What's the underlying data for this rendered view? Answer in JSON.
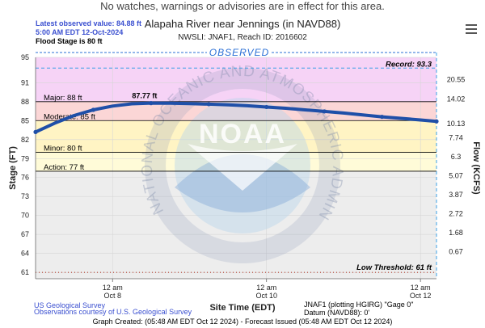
{
  "banner": {
    "advisory": "No watches, warnings or advisories are in effect for this area."
  },
  "header": {
    "latest_value": "Latest observed value: 84.88 ft",
    "latest_time": "5:00 AM EDT 12-Oct-2024",
    "flood_stage": "Flood Stage is 80 ft",
    "title": "Alapaha River near Jennings (in NAVD88)",
    "subtitle": "NWSLI: JNAF1, Reach ID: 2016602",
    "observed_label": "OBSERVED"
  },
  "watermark": {
    "text": "NOAA",
    "ring_text": "NATIONAL OCEANIC AND ATMOSPHERIC ADMINISTRATION · U.S. DEPARTMENT OF COMMERCE"
  },
  "footer": {
    "credit_usgs": "US Geological Survey",
    "credit_observations": "Observations courtesy of U.S. Geological Survey",
    "gage_line1": "JNAF1 (plotting HGIRG) \"Gage 0\"",
    "gage_line2": "Datum (NAVD88): 0'",
    "graph_created": "Graph Created: (05:48 AM EDT Oct 12 2024) - Forecast Issued (05:48 AM EDT Oct 12 2024)"
  },
  "colors": {
    "major": "#f6d3f6",
    "moderate": "#fbd6d6",
    "minor": "#fff4c4",
    "action": "#fffbd8",
    "normal": "#ededed",
    "line": "#1f4fa8",
    "accent": "#2a6fd6",
    "observed_divider": "#3aa0e6"
  },
  "chart_data": {
    "type": "line",
    "title": "Alapaha River near Jennings (in NAVD88)",
    "subtitle": "NWSLI: JNAF1, Reach ID: 2016602",
    "xlabel": "Site Time (EDT)",
    "ylabel": "Stage (FT)",
    "y2label": "Flow (KCFS)",
    "ylim": [
      60,
      95
    ],
    "xlim": [
      "2024-10-07 00:00",
      "2024-10-12 05:00"
    ],
    "y_ticks": [
      61,
      64,
      67,
      70,
      73,
      76,
      79,
      82,
      85,
      88,
      91,
      95
    ],
    "y2_ticks": [
      {
        "stage": 91.5,
        "label": "20.55"
      },
      {
        "stage": 88.4,
        "label": "14.02"
      },
      {
        "stage": 84.5,
        "label": "10.13"
      },
      {
        "stage": 82.3,
        "label": "7.74"
      },
      {
        "stage": 79.3,
        "label": "6.3"
      },
      {
        "stage": 76.3,
        "label": "5.07"
      },
      {
        "stage": 73.3,
        "label": "3.87"
      },
      {
        "stage": 70.3,
        "label": "2.72"
      },
      {
        "stage": 67.3,
        "label": "1.68"
      },
      {
        "stage": 64.3,
        "label": "0.67"
      }
    ],
    "x_ticks": [
      {
        "x": "2024-10-08 00:00",
        "line1": "12 am",
        "line2": "Oct 8"
      },
      {
        "x": "2024-10-10 00:00",
        "line1": "12 am",
        "line2": "Oct 10"
      },
      {
        "x": "2024-10-12 00:00",
        "line1": "12 am",
        "line2": "Oct 12"
      }
    ],
    "thresholds": [
      {
        "name": "Record",
        "value": 93.3,
        "label": "Record: 93.3"
      },
      {
        "name": "Major",
        "value": 88,
        "label": "Major: 88 ft"
      },
      {
        "name": "Moderate",
        "value": 85,
        "label": "Moderate: 85 ft"
      },
      {
        "name": "Minor",
        "value": 80,
        "label": "Minor: 80 ft"
      },
      {
        "name": "Action",
        "value": 77,
        "label": "Action: 77 ft"
      },
      {
        "name": "Low Threshold",
        "value": 61,
        "label": "Low Threshold: 61 ft"
      }
    ],
    "peak_label": "87.77 ft",
    "peak_value": 87.77,
    "peak_x": "2024-10-08 10:00",
    "series": [
      {
        "name": "Observed",
        "x": [
          "2024-10-07 00:00",
          "2024-10-07 06:00",
          "2024-10-07 12:00",
          "2024-10-07 18:00",
          "2024-10-08 00:00",
          "2024-10-08 06:00",
          "2024-10-08 12:00",
          "2024-10-08 18:00",
          "2024-10-09 00:00",
          "2024-10-09 06:00",
          "2024-10-09 12:00",
          "2024-10-09 18:00",
          "2024-10-10 00:00",
          "2024-10-10 06:00",
          "2024-10-10 12:00",
          "2024-10-10 18:00",
          "2024-10-11 00:00",
          "2024-10-11 06:00",
          "2024-10-11 12:00",
          "2024-10-11 18:00",
          "2024-10-12 00:00",
          "2024-10-12 05:00"
        ],
        "y": [
          83.2,
          84.6,
          85.8,
          86.7,
          87.3,
          87.65,
          87.77,
          87.75,
          87.68,
          87.6,
          87.5,
          87.35,
          87.15,
          86.95,
          86.7,
          86.45,
          86.2,
          85.9,
          85.6,
          85.35,
          85.1,
          84.88
        ]
      }
    ]
  }
}
